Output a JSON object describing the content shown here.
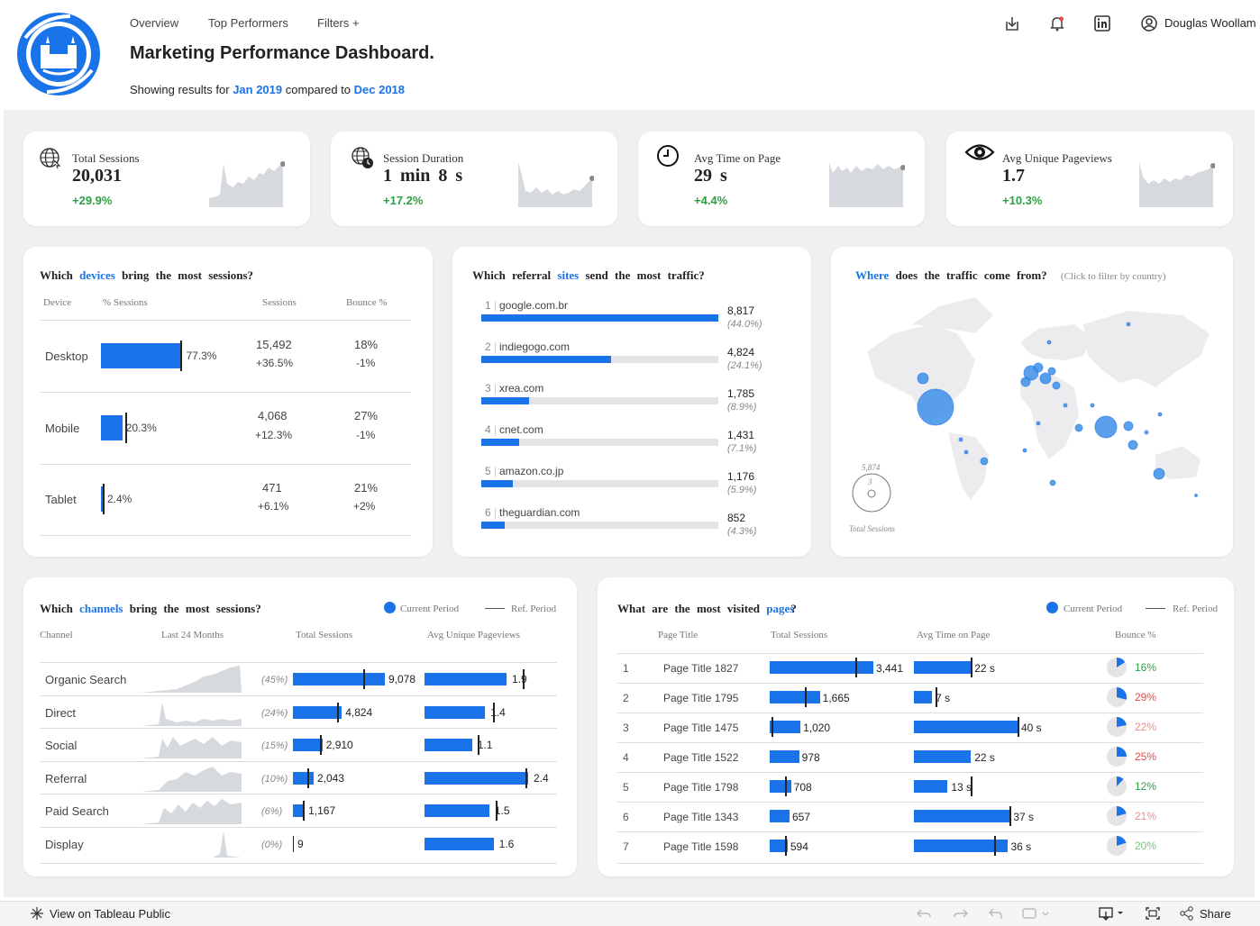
{
  "header": {
    "nav": [
      "Overview",
      "Top Performers",
      "Filters +"
    ],
    "title": "Marketing Performance Dashboard.",
    "subtitle_prefix": "Showing results for",
    "current_period": "Jan 2019",
    "subtitle_mid": "compared to",
    "ref_period": "Dec 2018",
    "user_name": "Douglas Woollam",
    "icons": [
      "download-icon",
      "bell-icon",
      "linkedin-icon",
      "user-icon"
    ]
  },
  "kpis": [
    {
      "label": "Total Sessions",
      "value": "20,031",
      "change": "+29.9%",
      "icon": "globe-icon"
    },
    {
      "label": "Session Duration",
      "value": "1 min 8 s",
      "change": "+17.2%",
      "icon": "globe-clock-icon"
    },
    {
      "label": "Avg Time on Page",
      "value": "29 s",
      "change": "+4.4%",
      "icon": "clock-icon"
    },
    {
      "label": "Avg Unique Pageviews",
      "value": "1.7",
      "change": "+10.3%",
      "icon": "eye-icon"
    }
  ],
  "devices": {
    "title_pre": "Which",
    "title_hl": "devices",
    "title_post": "bring the most sessions?",
    "columns": [
      "Device",
      "% Sessions",
      "Sessions",
      "Bounce %"
    ],
    "rows": [
      {
        "device": "Desktop",
        "pct": "77.3%",
        "pct_value": 77.3,
        "sessions": "15,492",
        "sessions_change": "+36.5%",
        "bounce": "18%",
        "bounce_change": "-1%"
      },
      {
        "device": "Mobile",
        "pct": "20.3%",
        "pct_value": 20.3,
        "sessions": "4,068",
        "sessions_change": "+12.3%",
        "bounce": "27%",
        "bounce_change": "-1%"
      },
      {
        "device": "Tablet",
        "pct": "2.4%",
        "pct_value": 2.4,
        "sessions": "471",
        "sessions_change": "+6.1%",
        "bounce": "21%",
        "bounce_change": "+2%"
      }
    ]
  },
  "referral": {
    "title_pre": "Which referral",
    "title_hl": "sites",
    "title_post": "send the most traffic?",
    "rows": [
      {
        "rank": "1",
        "site": "google.com.br",
        "value": "8,817",
        "pct": "(44.0%)",
        "pct_value": 44.0
      },
      {
        "rank": "2",
        "site": "indiegogo.com",
        "value": "4,824",
        "pct": "(24.1%)",
        "pct_value": 24.1
      },
      {
        "rank": "3",
        "site": "xrea.com",
        "value": "1,785",
        "pct": "(8.9%)",
        "pct_value": 8.9
      },
      {
        "rank": "4",
        "site": "cnet.com",
        "value": "1,431",
        "pct": "(7.1%)",
        "pct_value": 7.1
      },
      {
        "rank": "5",
        "site": "amazon.co.jp",
        "value": "1,176",
        "pct": "(5.9%)",
        "pct_value": 5.9
      },
      {
        "rank": "6",
        "site": "theguardian.com",
        "value": "852",
        "pct": "(4.3%)",
        "pct_value": 4.3
      }
    ]
  },
  "map": {
    "title_hl": "Where",
    "title_post": "does the traffic come from?",
    "hint": "(Click to filter by country)",
    "legend_max": "5,874",
    "legend_min": "3",
    "legend_label": "Total Sessions"
  },
  "channels": {
    "title_pre": "Which",
    "title_hl": "channels",
    "title_post": "bring the most sessions?",
    "legend_current": "Current Period",
    "legend_ref": "Ref. Period",
    "columns": [
      "Channel",
      "Last 24 Months",
      "Total Sessions",
      "Avg Unique Pageviews"
    ],
    "rows": [
      {
        "channel": "Organic Search",
        "pct": "(45%)",
        "sessions": "9,078",
        "sessions_value": 9078,
        "pageviews": "1.9",
        "pageviews_value": 1.9
      },
      {
        "channel": "Direct",
        "pct": "(24%)",
        "sessions": "4,824",
        "sessions_value": 4824,
        "pageviews": "1.4",
        "pageviews_value": 1.4
      },
      {
        "channel": "Social",
        "pct": "(15%)",
        "sessions": "2,910",
        "sessions_value": 2910,
        "pageviews": "1.1",
        "pageviews_value": 1.1
      },
      {
        "channel": "Referral",
        "pct": "(10%)",
        "sessions": "2,043",
        "sessions_value": 2043,
        "pageviews": "2.4",
        "pageviews_value": 2.4
      },
      {
        "channel": "Paid Search",
        "pct": "(6%)",
        "sessions": "1,167",
        "sessions_value": 1167,
        "pageviews": "1.5",
        "pageviews_value": 1.5
      },
      {
        "channel": "Display",
        "pct": "(0%)",
        "sessions": "9",
        "sessions_value": 9,
        "pageviews": "1.6",
        "pageviews_value": 1.6
      }
    ]
  },
  "pages": {
    "title_pre": "What are the most visited",
    "title_hl": "pages",
    "title_post": "?",
    "legend_current": "Current Period",
    "legend_ref": "Ref. Period",
    "columns": [
      "Page Title",
      "Total Sessions",
      "Avg Time on Page",
      "Bounce %"
    ],
    "rows": [
      {
        "rank": "1",
        "title": "Page Title 1827",
        "sessions": "3,441",
        "sessions_value": 3441,
        "time": "22 s",
        "time_value": 22,
        "bounce": "16%",
        "bounce_value": 16,
        "bounce_color": "green"
      },
      {
        "rank": "2",
        "title": "Page Title 1795",
        "sessions": "1,665",
        "sessions_value": 1665,
        "time": "7 s",
        "time_value": 7,
        "bounce": "29%",
        "bounce_value": 29,
        "bounce_color": "red"
      },
      {
        "rank": "3",
        "title": "Page Title 1475",
        "sessions": "1,020",
        "sessions_value": 1020,
        "time": "40 s",
        "time_value": 40,
        "bounce": "22%",
        "bounce_value": 22,
        "bounce_color": "lred"
      },
      {
        "rank": "4",
        "title": "Page Title 1522",
        "sessions": "978",
        "sessions_value": 978,
        "time": "22 s",
        "time_value": 22,
        "bounce": "25%",
        "bounce_value": 25,
        "bounce_color": "red"
      },
      {
        "rank": "5",
        "title": "Page Title 1798",
        "sessions": "708",
        "sessions_value": 708,
        "time": "13 s",
        "time_value": 13,
        "bounce": "12%",
        "bounce_value": 12,
        "bounce_color": "green"
      },
      {
        "rank": "6",
        "title": "Page Title 1343",
        "sessions": "657",
        "sessions_value": 657,
        "time": "37 s",
        "time_value": 37,
        "bounce": "21%",
        "bounce_value": 21,
        "bounce_color": "lred"
      },
      {
        "rank": "7",
        "title": "Page Title 1598",
        "sessions": "594",
        "sessions_value": 594,
        "time": "36 s",
        "time_value": 36,
        "bounce": "20%",
        "bounce_value": 20,
        "bounce_color": "lgreen"
      }
    ]
  },
  "footer": {
    "view_label": "View on Tableau Public",
    "share_label": "Share"
  }
}
